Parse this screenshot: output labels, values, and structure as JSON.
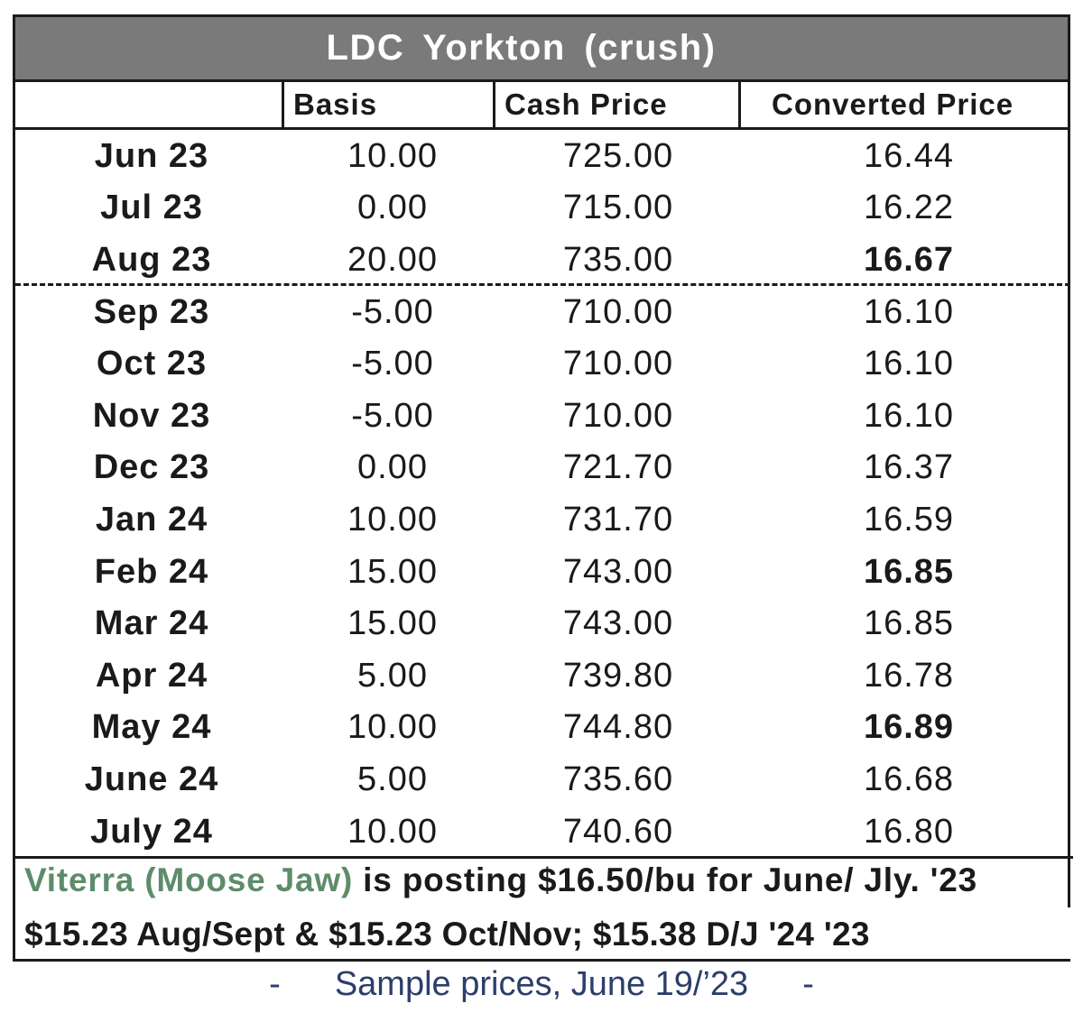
{
  "title": "LDC  Yorkton (crush)",
  "headers": {
    "basis": "Basis",
    "cash_price": "Cash Price",
    "converted_price": "Converted Price"
  },
  "rows": [
    {
      "month": "Jun 23",
      "basis": "10.00",
      "cash": "725.00",
      "converted": "16.44",
      "bold": false
    },
    {
      "month": "Jul 23",
      "basis": "0.00",
      "cash": "715.00",
      "converted": "16.22",
      "bold": false
    },
    {
      "month": "Aug 23",
      "basis": "20.00",
      "cash": "735.00",
      "converted": "16.67",
      "bold": true
    },
    {
      "month": "Sep 23",
      "basis": "-5.00",
      "cash": "710.00",
      "converted": "16.10",
      "bold": false
    },
    {
      "month": "Oct 23",
      "basis": "-5.00",
      "cash": "710.00",
      "converted": "16.10",
      "bold": false
    },
    {
      "month": "Nov 23",
      "basis": "-5.00",
      "cash": "710.00",
      "converted": "16.10",
      "bold": false
    },
    {
      "month": "Dec 23",
      "basis": "0.00",
      "cash": "721.70",
      "converted": "16.37",
      "bold": false
    },
    {
      "month": "Jan 24",
      "basis": "10.00",
      "cash": "731.70",
      "converted": "16.59",
      "bold": false
    },
    {
      "month": "Feb 24",
      "basis": "15.00",
      "cash": "743.00",
      "converted": "16.85",
      "bold": true
    },
    {
      "month": "Mar 24",
      "basis": "15.00",
      "cash": "743.00",
      "converted": "16.85",
      "bold": false
    },
    {
      "month": "Apr 24",
      "basis": "5.00",
      "cash": "739.80",
      "converted": "16.78",
      "bold": false
    },
    {
      "month": "May 24",
      "basis": "10.00",
      "cash": "744.80",
      "converted": "16.89",
      "bold": true
    },
    {
      "month": "June 24",
      "basis": "5.00",
      "cash": "735.60",
      "converted": "16.68",
      "bold": false
    },
    {
      "month": "July 24",
      "basis": "10.00",
      "cash": "740.60",
      "converted": "16.80",
      "bold": false
    }
  ],
  "note": {
    "highlight": "Viterra (Moose Jaw)",
    "line1_rest": " is posting $16.50/bu for June/ Jly. '23",
    "line2": "$15.23 Aug/Sept & $15.23 Oct/Nov; $15.38 D/J '24 '23"
  },
  "footer": {
    "dash_left": "-",
    "text": "Sample prices, June 19/’23",
    "dash_right": "-"
  },
  "colors": {
    "title_bg": "#7a7a7a",
    "highlight": "#5e8c6a",
    "footer_text": "#2c3e6b"
  }
}
